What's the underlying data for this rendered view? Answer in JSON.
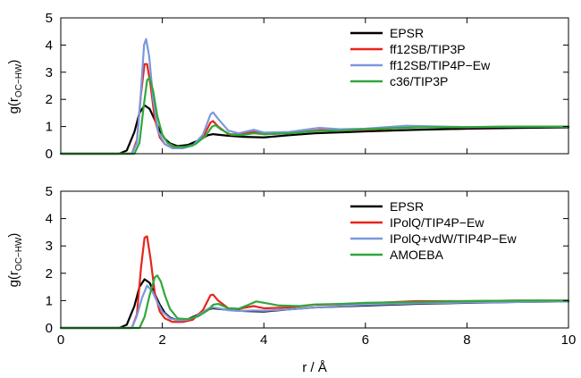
{
  "figure": {
    "xlabel": "r / Å",
    "ylabel_main": "g(r",
    "ylabel_sub": "OC−HW",
    "ylabel_close": ")"
  },
  "chart_data": [
    {
      "type": "line",
      "panel": "top",
      "xlim": [
        0,
        10
      ],
      "ylim": [
        0,
        5
      ],
      "xticks": [
        0,
        2,
        4,
        6,
        8,
        10
      ],
      "yticks": [
        0,
        1,
        2,
        3,
        4,
        5
      ],
      "grid": false,
      "legend_position": "top-right",
      "series": [
        {
          "name": "EPSR",
          "color": "#000000",
          "x": [
            0,
            1.15,
            1.3,
            1.45,
            1.55,
            1.65,
            1.75,
            1.85,
            1.95,
            2.05,
            2.15,
            2.3,
            2.5,
            2.7,
            2.9,
            3.0,
            3.1,
            3.3,
            3.6,
            4.0,
            4.5,
            5.0,
            6.0,
            7.0,
            8.0,
            9.0,
            10.0
          ],
          "y": [
            0,
            0,
            0.12,
            0.8,
            1.5,
            1.78,
            1.65,
            1.25,
            0.85,
            0.55,
            0.38,
            0.28,
            0.32,
            0.48,
            0.68,
            0.72,
            0.7,
            0.66,
            0.62,
            0.6,
            0.68,
            0.75,
            0.82,
            0.88,
            0.92,
            0.95,
            0.97
          ]
        },
        {
          "name": "ff12SB/TIP3P",
          "color": "#e8241b",
          "x": [
            0,
            1.4,
            1.5,
            1.58,
            1.65,
            1.7,
            1.77,
            1.85,
            1.95,
            2.05,
            2.2,
            2.4,
            2.6,
            2.8,
            2.95,
            3.0,
            3.1,
            3.3,
            3.5,
            3.8,
            4.0,
            4.5,
            5.0,
            5.1,
            5.5,
            6.0,
            7.0,
            8.0,
            9.0,
            10.0
          ],
          "y": [
            0,
            0,
            0.5,
            2.2,
            3.3,
            3.3,
            2.5,
            1.3,
            0.6,
            0.35,
            0.22,
            0.22,
            0.3,
            0.6,
            1.15,
            1.2,
            1.0,
            0.72,
            0.7,
            0.8,
            0.72,
            0.75,
            0.85,
            0.87,
            0.85,
            0.88,
            0.98,
            0.97,
            1.0,
            1.0
          ]
        },
        {
          "name": "ff12SB/TIP4P−Ew",
          "color": "#7b98dc",
          "x": [
            0,
            1.4,
            1.5,
            1.58,
            1.64,
            1.68,
            1.74,
            1.82,
            1.92,
            2.05,
            2.2,
            2.4,
            2.6,
            2.8,
            2.95,
            3.0,
            3.1,
            3.3,
            3.5,
            3.8,
            4.0,
            4.5,
            5.0,
            5.1,
            5.5,
            6.0,
            6.8,
            7.5,
            8.0,
            9.0,
            10.0
          ],
          "y": [
            0,
            0,
            0.4,
            2.3,
            4.0,
            4.22,
            3.6,
            2.0,
            0.8,
            0.35,
            0.2,
            0.2,
            0.3,
            0.7,
            1.45,
            1.52,
            1.28,
            0.85,
            0.75,
            0.88,
            0.78,
            0.8,
            0.93,
            0.95,
            0.9,
            0.92,
            1.03,
            1.0,
            0.98,
            1.0,
            1.0
          ]
        },
        {
          "name": "c36/TIP3P",
          "color": "#2fa83c",
          "x": [
            0,
            1.45,
            1.55,
            1.63,
            1.7,
            1.75,
            1.82,
            1.9,
            2.0,
            2.1,
            2.25,
            2.45,
            2.65,
            2.85,
            2.98,
            3.05,
            3.15,
            3.35,
            3.55,
            3.8,
            4.0,
            4.5,
            5.0,
            5.5,
            6.0,
            7.0,
            8.0,
            9.0,
            10.0
          ],
          "y": [
            0,
            0,
            0.4,
            1.7,
            2.7,
            2.8,
            2.3,
            1.4,
            0.7,
            0.4,
            0.25,
            0.25,
            0.35,
            0.65,
            1.0,
            1.05,
            0.9,
            0.7,
            0.68,
            0.75,
            0.72,
            0.75,
            0.83,
            0.85,
            0.9,
            0.97,
            0.98,
            1.0,
            1.0
          ]
        }
      ]
    },
    {
      "type": "line",
      "panel": "bottom",
      "xlim": [
        0,
        10
      ],
      "ylim": [
        0,
        5
      ],
      "xticks": [
        0,
        2,
        4,
        6,
        8,
        10
      ],
      "yticks": [
        0,
        1,
        2,
        3,
        4,
        5
      ],
      "grid": false,
      "legend_position": "top-right",
      "series": [
        {
          "name": "EPSR",
          "color": "#000000",
          "x": [
            0,
            1.15,
            1.3,
            1.45,
            1.55,
            1.65,
            1.75,
            1.85,
            1.95,
            2.05,
            2.15,
            2.3,
            2.5,
            2.7,
            2.9,
            3.0,
            3.1,
            3.3,
            3.6,
            4.0,
            4.5,
            5.0,
            6.0,
            7.0,
            8.0,
            9.0,
            10.0
          ],
          "y": [
            0,
            0,
            0.12,
            0.8,
            1.5,
            1.78,
            1.65,
            1.25,
            0.85,
            0.55,
            0.38,
            0.28,
            0.32,
            0.48,
            0.68,
            0.72,
            0.7,
            0.66,
            0.62,
            0.6,
            0.68,
            0.75,
            0.82,
            0.88,
            0.92,
            0.95,
            0.97
          ]
        },
        {
          "name": "IPolQ/TIP4P−Ew",
          "color": "#e8241b",
          "x": [
            0,
            1.4,
            1.5,
            1.58,
            1.65,
            1.7,
            1.77,
            1.85,
            1.95,
            2.05,
            2.2,
            2.4,
            2.6,
            2.8,
            2.95,
            3.0,
            3.1,
            3.3,
            3.5,
            3.8,
            4.0,
            4.5,
            5.0,
            5.5,
            6.0,
            7.0,
            8.0,
            9.0,
            10.0
          ],
          "y": [
            0,
            0,
            0.5,
            2.2,
            3.3,
            3.35,
            2.5,
            1.3,
            0.6,
            0.35,
            0.22,
            0.22,
            0.3,
            0.65,
            1.2,
            1.22,
            1.0,
            0.72,
            0.7,
            0.8,
            0.72,
            0.75,
            0.85,
            0.87,
            0.9,
            0.98,
            0.98,
            1.0,
            1.0
          ]
        },
        {
          "name": "IPolQ+vdW/TIP4P−Ew",
          "color": "#7b98dc",
          "x": [
            0,
            1.4,
            1.5,
            1.6,
            1.7,
            1.8,
            1.9,
            2.0,
            2.15,
            2.3,
            2.5,
            2.7,
            2.9,
            3.0,
            3.1,
            3.3,
            3.5,
            3.8,
            4.0,
            4.5,
            5.0,
            5.5,
            6.0,
            7.0,
            8.0,
            9.0,
            10.0
          ],
          "y": [
            0,
            0,
            0.45,
            1.1,
            1.55,
            1.35,
            0.95,
            0.6,
            0.35,
            0.28,
            0.3,
            0.45,
            0.7,
            0.75,
            0.72,
            0.65,
            0.62,
            0.64,
            0.63,
            0.68,
            0.75,
            0.8,
            0.85,
            0.9,
            0.93,
            0.95,
            0.97
          ]
        },
        {
          "name": "AMOEBA",
          "color": "#2fa83c",
          "x": [
            0,
            1.55,
            1.65,
            1.75,
            1.85,
            1.9,
            1.97,
            2.05,
            2.15,
            2.3,
            2.5,
            2.7,
            2.9,
            3.0,
            3.1,
            3.3,
            3.5,
            3.7,
            3.85,
            4.0,
            4.3,
            4.7,
            5.0,
            5.5,
            6.0,
            7.0,
            8.0,
            9.0,
            10.0
          ],
          "y": [
            0,
            0,
            0.4,
            1.2,
            1.85,
            1.92,
            1.7,
            1.2,
            0.7,
            0.35,
            0.32,
            0.42,
            0.65,
            0.85,
            0.88,
            0.72,
            0.7,
            0.85,
            0.97,
            0.92,
            0.82,
            0.8,
            0.86,
            0.88,
            0.92,
            0.95,
            0.98,
            1.0,
            1.0
          ]
        }
      ]
    }
  ]
}
